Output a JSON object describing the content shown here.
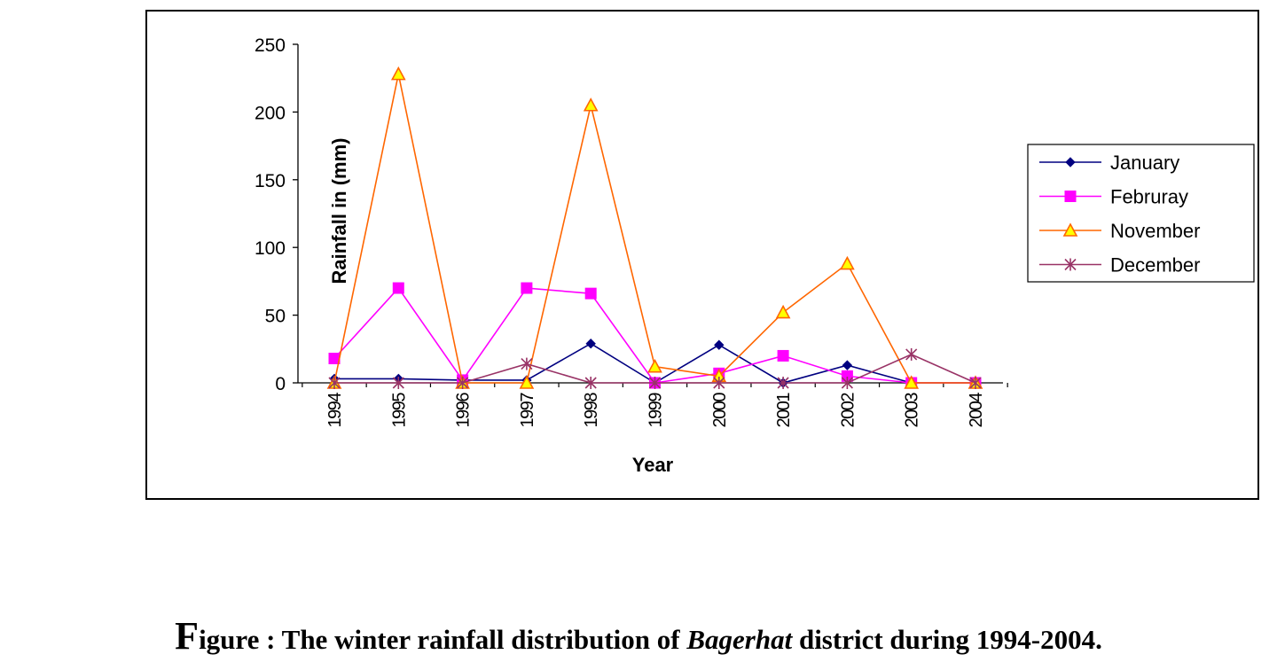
{
  "chart_data": {
    "type": "line",
    "title": "",
    "xlabel": "Year",
    "ylabel": "Rainfall in (mm)",
    "x": [
      "1994",
      "1995",
      "1996",
      "1997",
      "1998",
      "1999",
      "2000",
      "2001",
      "2002",
      "2003",
      "2004"
    ],
    "ylim": [
      0,
      250
    ],
    "yticks": [
      0,
      50,
      100,
      150,
      200,
      250
    ],
    "grid": false,
    "legend_position": "right",
    "series": [
      {
        "name": "January",
        "color": "#000080",
        "marker": "diamond",
        "values": [
          3,
          3,
          2,
          2,
          29,
          0,
          28,
          0,
          13,
          0,
          0
        ]
      },
      {
        "name": "Februray",
        "color": "#FF00FF",
        "marker": "square",
        "values": [
          18,
          70,
          2,
          70,
          66,
          0,
          7,
          20,
          5,
          0,
          0
        ]
      },
      {
        "name": "November",
        "color": "#FF6600",
        "marker": "triangle",
        "values": [
          0,
          228,
          0,
          0,
          205,
          12,
          5,
          52,
          88,
          0,
          0
        ]
      },
      {
        "name": "December",
        "color": "#993366",
        "marker": "star",
        "values": [
          0,
          0,
          0,
          14,
          0,
          0,
          0,
          0,
          0,
          21,
          0
        ]
      }
    ]
  },
  "caption": {
    "initial": "F",
    "text_before": "igure : The winter rainfall distribution of ",
    "italic": "Bagerhat",
    "text_after": " district during 1994-2004."
  }
}
